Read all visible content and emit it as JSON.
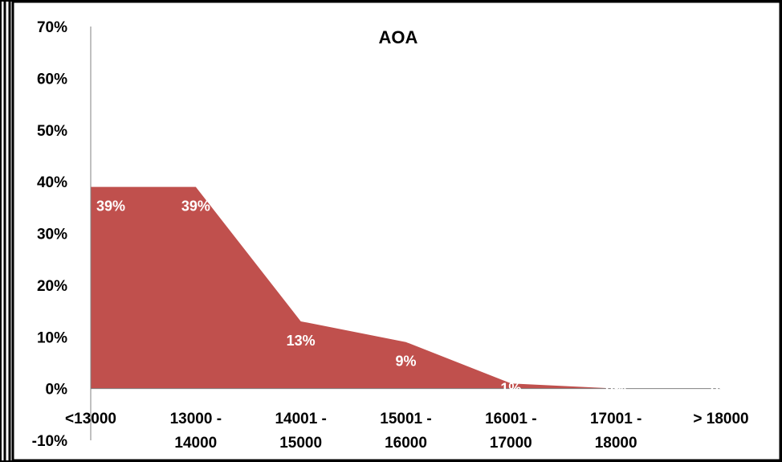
{
  "chart_data": {
    "type": "area",
    "title": "AOA",
    "xlabel": "",
    "ylabel": "",
    "categories": [
      [
        "<13000"
      ],
      [
        "13000 -",
        "14000"
      ],
      [
        "14001 -",
        "15000"
      ],
      [
        "15001 -",
        "16000"
      ],
      [
        "16001 -",
        "17000"
      ],
      [
        "17001 -",
        "18000"
      ],
      [
        "> 18000"
      ]
    ],
    "values": [
      39,
      39,
      13,
      9,
      1,
      0,
      0
    ],
    "data_labels": [
      "39%",
      "39%",
      "13%",
      "9%",
      "1%",
      "0%",
      "0%"
    ],
    "y_ticks": [
      "-10%",
      "0%",
      "10%",
      "20%",
      "30%",
      "40%",
      "50%",
      "60%",
      "70%"
    ],
    "ylim": [
      -10,
      70
    ],
    "grid": false,
    "legend": "none",
    "colors": {
      "area": "#c0504d",
      "axis": "#808080",
      "border": "#000000"
    }
  }
}
